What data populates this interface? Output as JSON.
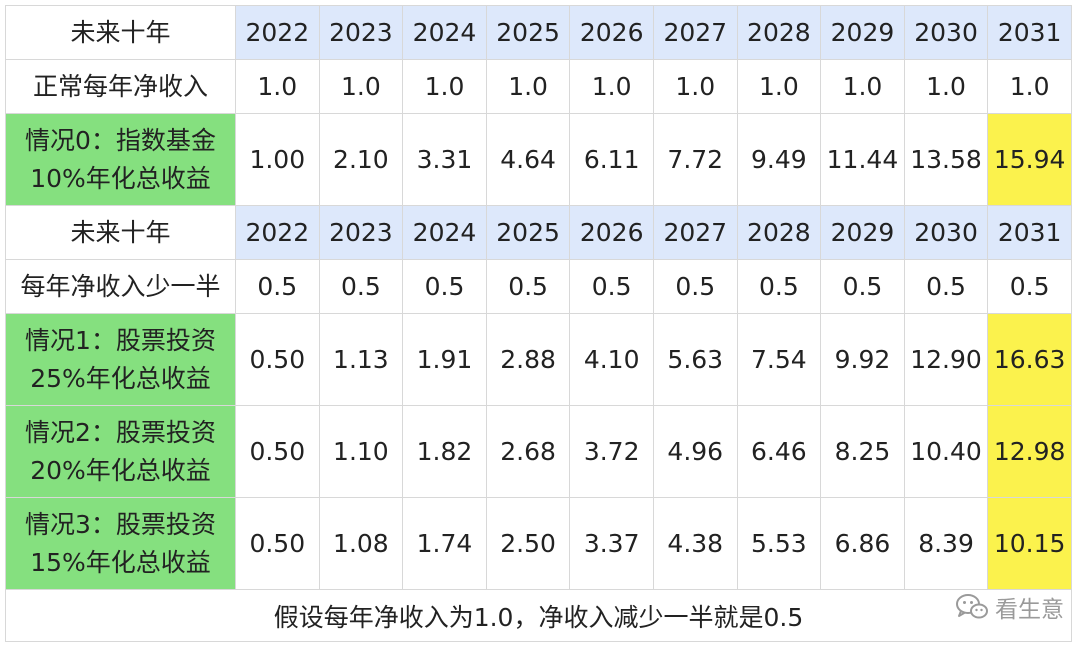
{
  "table": {
    "years": [
      "2022",
      "2023",
      "2024",
      "2025",
      "2026",
      "2027",
      "2028",
      "2029",
      "2030",
      "2031"
    ],
    "section1": {
      "header_label": "未来十年",
      "income_label": "正常每年净收入",
      "income_values": [
        "1.0",
        "1.0",
        "1.0",
        "1.0",
        "1.0",
        "1.0",
        "1.0",
        "1.0",
        "1.0",
        "1.0"
      ],
      "scenario0": {
        "label_line1": "情况0：指数基金",
        "label_line2": "10%年化总收益",
        "values": [
          "1.00",
          "2.10",
          "3.31",
          "4.64",
          "6.11",
          "7.72",
          "9.49",
          "11.44",
          "13.58",
          "15.94"
        ]
      }
    },
    "section2": {
      "header_label": "未来十年",
      "income_label": "每年净收入少一半",
      "income_values": [
        "0.5",
        "0.5",
        "0.5",
        "0.5",
        "0.5",
        "0.5",
        "0.5",
        "0.5",
        "0.5",
        "0.5"
      ],
      "scenario1": {
        "label_line1": "情况1：股票投资",
        "label_line2": "25%年化总收益",
        "values": [
          "0.50",
          "1.13",
          "1.91",
          "2.88",
          "4.10",
          "5.63",
          "7.54",
          "9.92",
          "12.90",
          "16.63"
        ]
      },
      "scenario2": {
        "label_line1": "情况2：股票投资",
        "label_line2": "20%年化总收益",
        "values": [
          "0.50",
          "1.10",
          "1.82",
          "2.68",
          "3.72",
          "4.96",
          "6.46",
          "8.25",
          "10.40",
          "12.98"
        ]
      },
      "scenario3": {
        "label_line1": "情况3：股票投资",
        "label_line2": "15%年化总收益",
        "values": [
          "0.50",
          "1.08",
          "1.74",
          "2.50",
          "3.37",
          "4.38",
          "5.53",
          "6.86",
          "8.39",
          "10.15"
        ]
      }
    },
    "note": "假设每年净收入为1.0，净收入减少一半就是0.5"
  },
  "watermark": {
    "text": "看生意",
    "icon": "wechat-icon"
  },
  "colors": {
    "year_header_bg": "#dde8fb",
    "scenario_label_bg": "#85e07f",
    "final_year_highlight": "#fbf24d",
    "grid_line": "#d8d8d8"
  }
}
